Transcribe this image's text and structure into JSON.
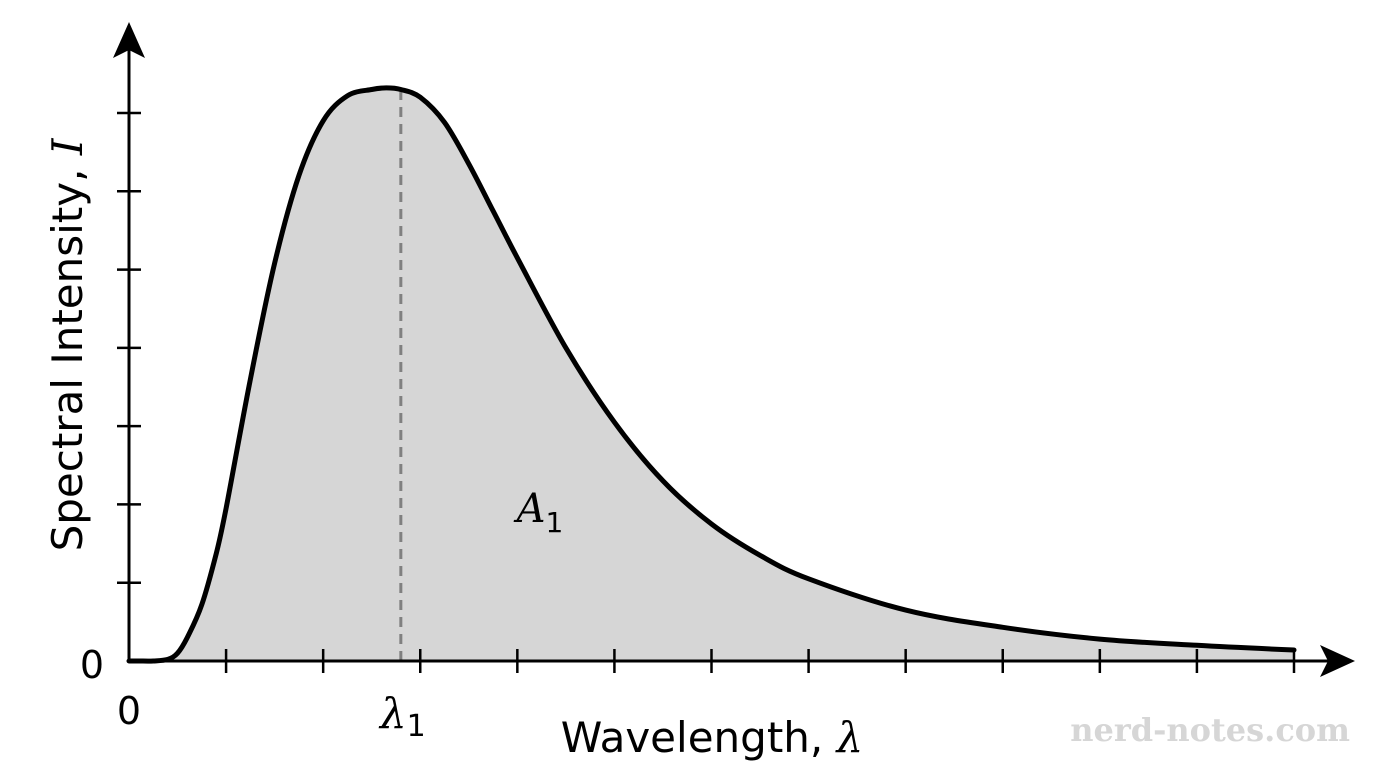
{
  "chart_data": {
    "type": "area",
    "xlabel": {
      "text": "Wavelength, ",
      "symbol": "λ"
    },
    "ylabel": {
      "text": "Spectral Intensity, ",
      "symbol": "I"
    },
    "x_origin_label": "0",
    "y_origin_label": "0",
    "peak_label": {
      "symbol": "λ",
      "subscript": "1"
    },
    "area_label": {
      "symbol": "A",
      "subscript": "1"
    },
    "xlim": [
      0,
      12
    ],
    "ylim": [
      0,
      7
    ],
    "x_ticks": [
      1,
      2,
      3,
      4,
      5,
      6,
      7,
      8,
      9,
      10,
      11,
      12
    ],
    "y_ticks": [
      1,
      2,
      3,
      4,
      5,
      6,
      7
    ],
    "peak_x": 2.8,
    "peak_y": 7.3,
    "curve": {
      "x": [
        0,
        0.1,
        0.25,
        0.4,
        0.5,
        0.6,
        0.75,
        0.9,
        1.0,
        1.25,
        1.5,
        1.75,
        2.0,
        2.25,
        2.5,
        2.65,
        2.8,
        3.0,
        3.25,
        3.5,
        3.75,
        4.0,
        4.5,
        5.0,
        5.5,
        6.0,
        6.5,
        7.0,
        8.0,
        9.0,
        10.0,
        11.0,
        12.0
      ],
      "y": [
        0,
        0,
        0,
        0.02,
        0.1,
        0.3,
        0.72,
        1.38,
        1.95,
        3.6,
        5.08,
        6.2,
        6.9,
        7.22,
        7.3,
        7.32,
        7.3,
        7.2,
        6.88,
        6.35,
        5.75,
        5.15,
        4.0,
        3.05,
        2.3,
        1.75,
        1.35,
        1.05,
        0.65,
        0.43,
        0.28,
        0.2,
        0.14
      ]
    },
    "colors": {
      "fill": "#d6d6d6",
      "line": "#000000",
      "peak_line": "#808080",
      "axis": "#000000"
    },
    "grid": false,
    "legend": "none"
  },
  "watermark": "nerd-notes.com"
}
